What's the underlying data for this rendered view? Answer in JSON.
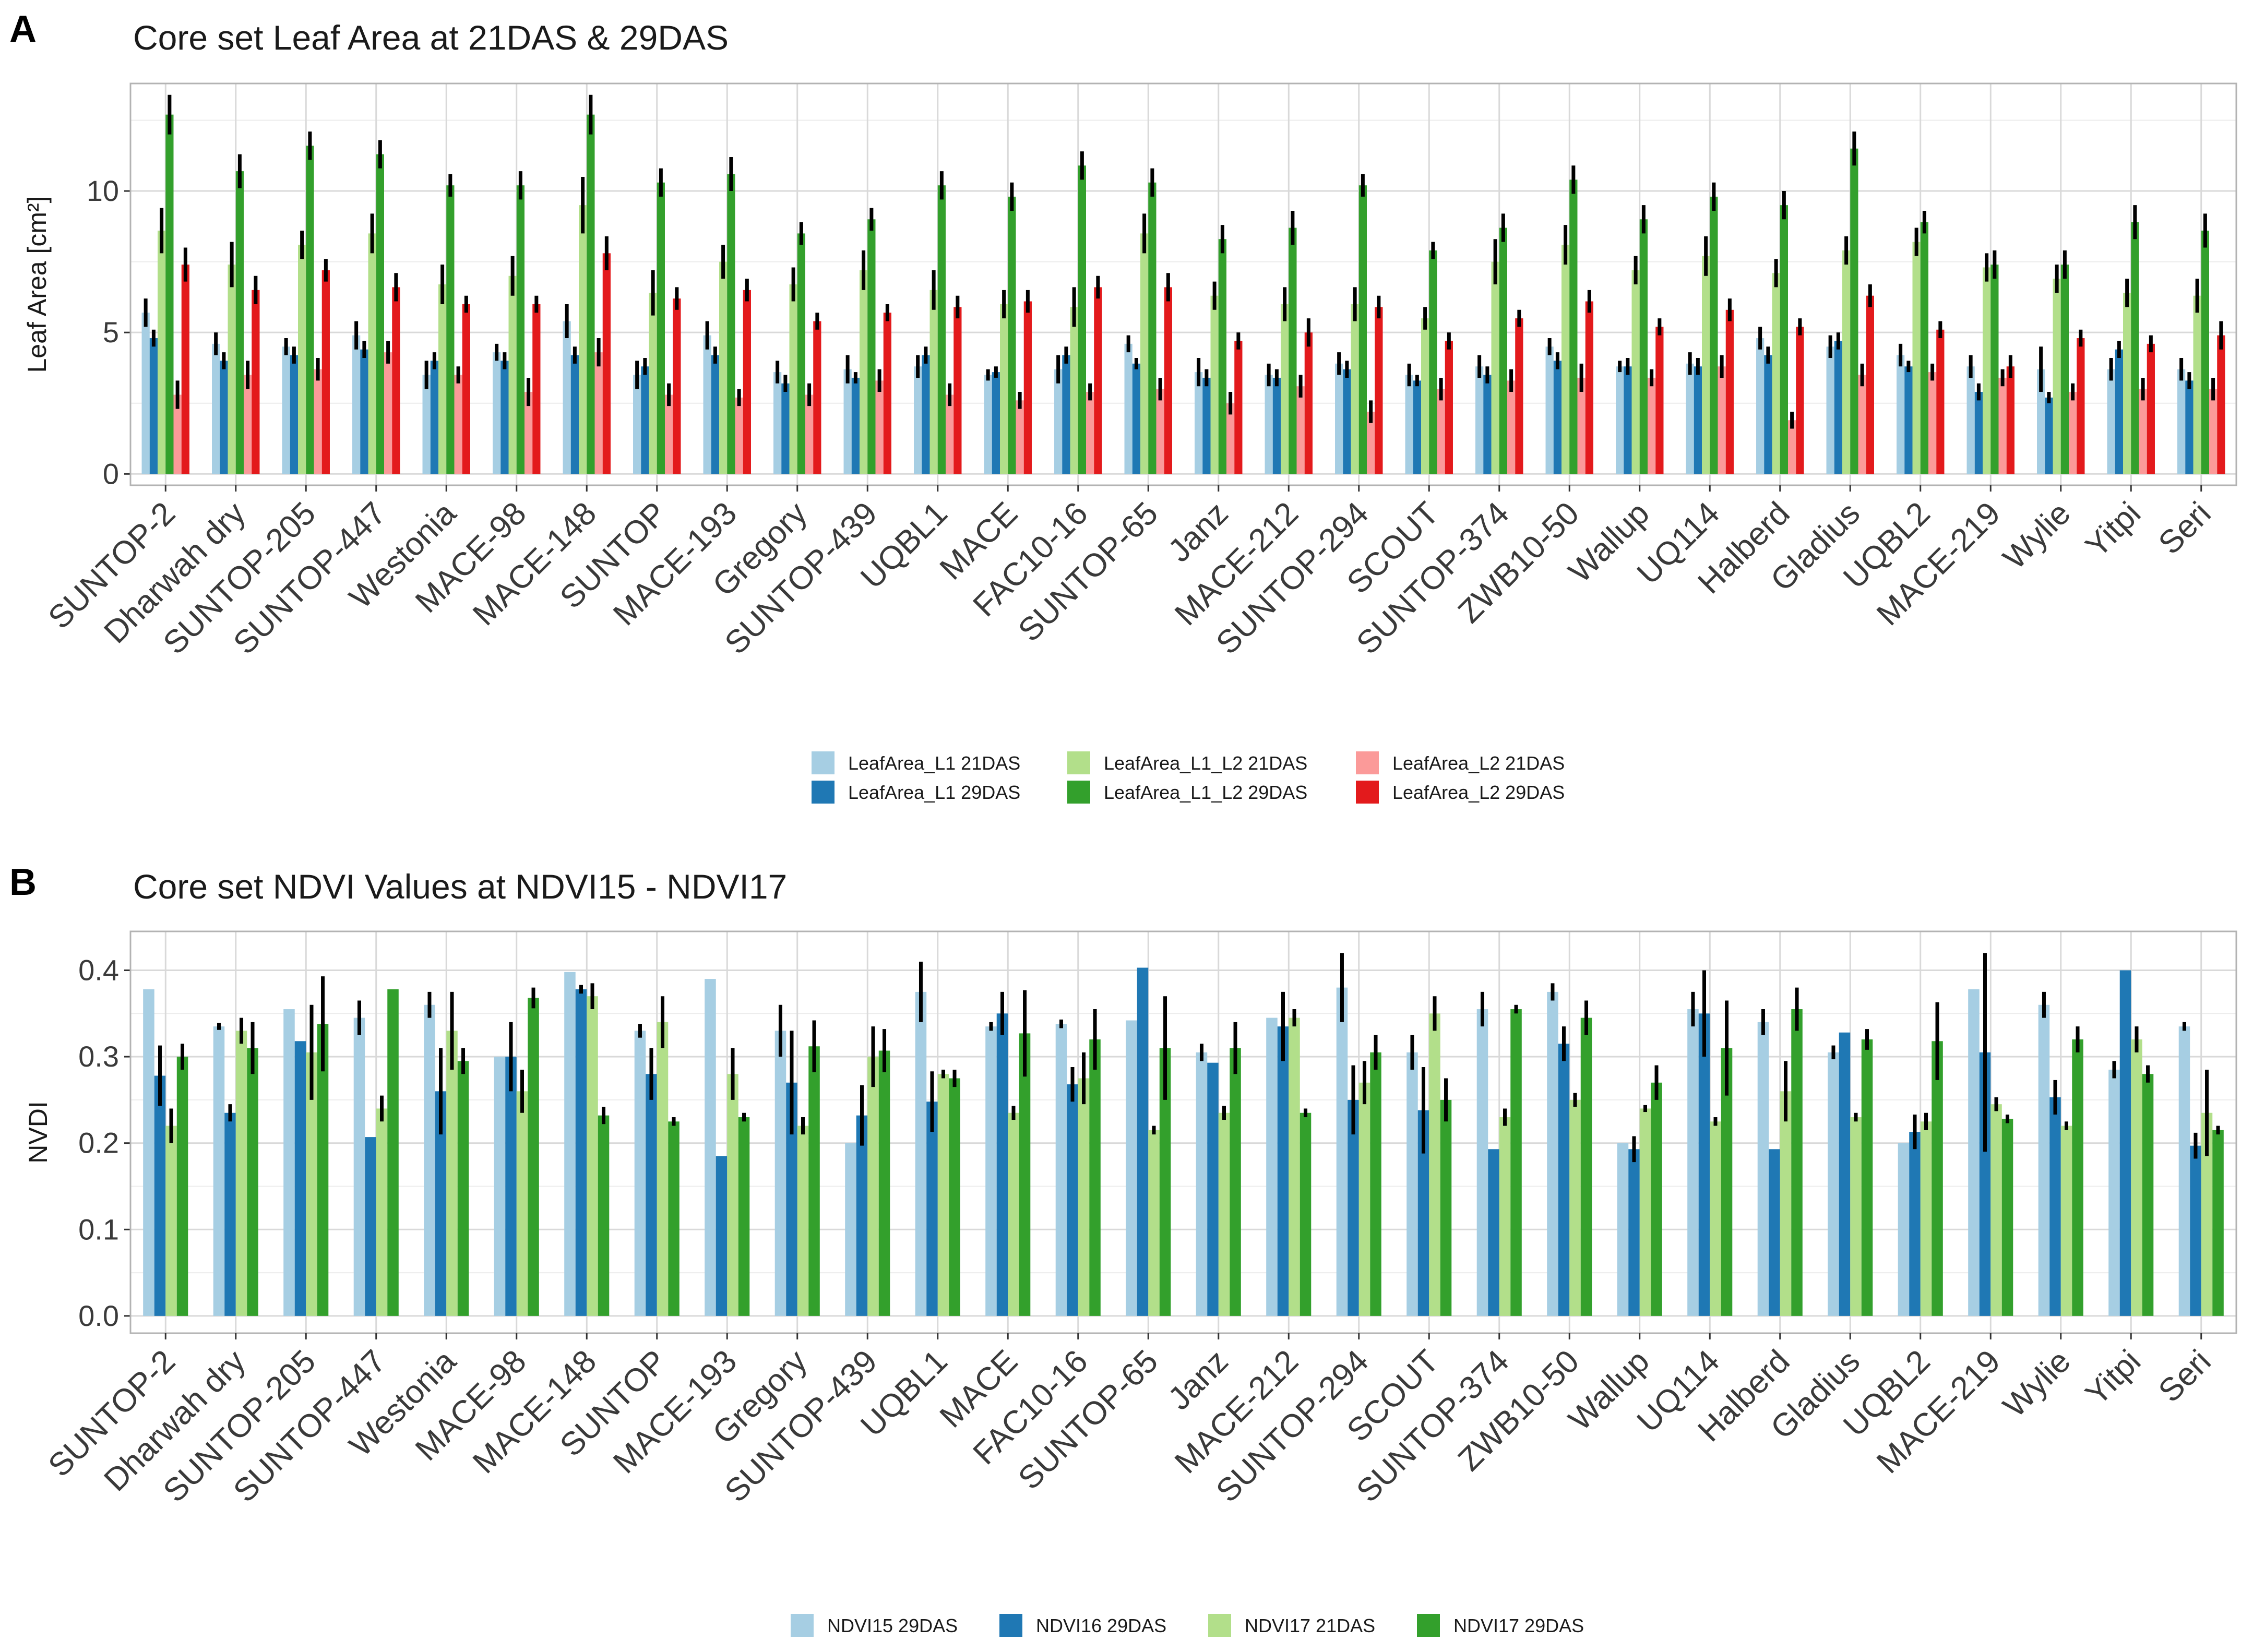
{
  "chart_data": [
    {
      "panel_letter": "A",
      "type": "bar",
      "title": "Core set Leaf Area at 21DAS & 29DAS",
      "ylabel": "Leaf Area [cm²]",
      "xlabel": "",
      "ylim": [
        -0.4,
        13.8
      ],
      "yticks": [
        0,
        5,
        10
      ],
      "grid": true,
      "legend_position": "bottom",
      "categories": [
        "SUNTOP-2",
        "Dharwah dry",
        "SUNTOP-205",
        "SUNTOP-447",
        "Westonia",
        "MACE-98",
        "MACE-148",
        "SUNTOP",
        "MACE-193",
        "Gregory",
        "SUNTOP-439",
        "UQBL1",
        "MACE",
        "FAC10-16",
        "SUNTOP-65",
        "Janz",
        "MACE-212",
        "SUNTOP-294",
        "SCOUT",
        "SUNTOP-374",
        "ZWB10-50",
        "Wallup",
        "UQ114",
        "Halberd",
        "Gladius",
        "UQBL2",
        "MACE-219",
        "Wylie",
        "Yitpi",
        "Seri"
      ],
      "series": [
        {
          "name": "LeafArea_L1 21DAS",
          "color": "#a6cee3",
          "values": [
            5.7,
            4.6,
            4.5,
            4.9,
            3.5,
            4.3,
            5.4,
            3.5,
            4.9,
            3.6,
            3.7,
            3.8,
            3.5,
            3.7,
            4.6,
            3.6,
            3.5,
            3.9,
            3.5,
            3.8,
            4.5,
            3.8,
            3.9,
            4.8,
            4.5,
            4.2,
            3.8,
            3.7,
            3.7,
            3.7
          ],
          "errors": [
            0.5,
            0.4,
            0.3,
            0.5,
            0.5,
            0.3,
            0.6,
            0.5,
            0.5,
            0.4,
            0.5,
            0.4,
            0.2,
            0.5,
            0.3,
            0.5,
            0.4,
            0.4,
            0.4,
            0.4,
            0.3,
            0.2,
            0.4,
            0.4,
            0.4,
            0.4,
            0.4,
            0.8,
            0.4,
            0.4
          ]
        },
        {
          "name": "LeafArea_L1 29DAS",
          "color": "#1f78b4",
          "values": [
            4.8,
            4.0,
            4.2,
            4.4,
            4.0,
            4.0,
            4.2,
            3.8,
            4.2,
            3.2,
            3.4,
            4.2,
            3.6,
            4.2,
            3.9,
            3.4,
            3.4,
            3.7,
            3.3,
            3.5,
            4.0,
            3.8,
            3.8,
            4.2,
            4.7,
            3.8,
            2.9,
            2.7,
            4.4,
            3.3
          ],
          "errors": [
            0.3,
            0.3,
            0.3,
            0.3,
            0.3,
            0.3,
            0.3,
            0.3,
            0.3,
            0.3,
            0.2,
            0.3,
            0.2,
            0.3,
            0.2,
            0.3,
            0.3,
            0.3,
            0.2,
            0.3,
            0.3,
            0.3,
            0.3,
            0.3,
            0.3,
            0.2,
            0.3,
            0.2,
            0.3,
            0.3
          ]
        },
        {
          "name": "LeafArea_L1_L2 21DAS",
          "color": "#b2df8a",
          "values": [
            8.6,
            7.4,
            8.1,
            8.5,
            6.7,
            7.0,
            9.5,
            6.4,
            7.5,
            6.7,
            7.2,
            6.5,
            6.0,
            5.9,
            8.5,
            6.3,
            6.0,
            6.0,
            5.5,
            7.5,
            8.1,
            7.2,
            7.7,
            7.1,
            7.9,
            8.2,
            7.3,
            6.9,
            6.4,
            6.3
          ],
          "errors": [
            0.8,
            0.8,
            0.5,
            0.7,
            0.7,
            0.7,
            1.0,
            0.8,
            0.6,
            0.6,
            0.7,
            0.7,
            0.5,
            0.7,
            0.7,
            0.5,
            0.6,
            0.6,
            0.4,
            0.8,
            0.7,
            0.5,
            0.7,
            0.5,
            0.5,
            0.5,
            0.5,
            0.5,
            0.5,
            0.6
          ]
        },
        {
          "name": "LeafArea_L1_L2 29DAS",
          "color": "#33a02c",
          "values": [
            12.7,
            10.7,
            11.6,
            11.3,
            10.2,
            10.2,
            12.7,
            10.3,
            10.6,
            8.5,
            9.0,
            10.2,
            9.8,
            10.9,
            10.3,
            8.3,
            8.7,
            10.2,
            7.9,
            8.7,
            10.4,
            9.0,
            9.8,
            9.5,
            11.5,
            8.9,
            7.4,
            7.4,
            8.9,
            8.6
          ],
          "errors": [
            0.7,
            0.6,
            0.5,
            0.5,
            0.4,
            0.5,
            0.7,
            0.5,
            0.6,
            0.4,
            0.4,
            0.5,
            0.5,
            0.5,
            0.5,
            0.5,
            0.6,
            0.4,
            0.3,
            0.5,
            0.5,
            0.5,
            0.5,
            0.5,
            0.6,
            0.4,
            0.5,
            0.5,
            0.6,
            0.6
          ]
        },
        {
          "name": "LeafArea_L2 21DAS",
          "color": "#fb9a99",
          "values": [
            2.8,
            3.5,
            3.7,
            4.3,
            3.5,
            2.9,
            4.3,
            2.8,
            2.7,
            2.8,
            3.3,
            2.8,
            2.6,
            2.9,
            3.0,
            2.5,
            3.1,
            2.2,
            3.0,
            3.3,
            3.4,
            3.4,
            3.8,
            1.9,
            3.5,
            3.6,
            3.4,
            2.9,
            3.0,
            3.0
          ],
          "errors": [
            0.5,
            0.5,
            0.4,
            0.4,
            0.3,
            0.5,
            0.5,
            0.4,
            0.3,
            0.4,
            0.4,
            0.4,
            0.3,
            0.3,
            0.4,
            0.4,
            0.4,
            0.4,
            0.4,
            0.4,
            0.5,
            0.3,
            0.4,
            0.3,
            0.4,
            0.3,
            0.3,
            0.3,
            0.4,
            0.4
          ]
        },
        {
          "name": "LeafArea_L2 29DAS",
          "color": "#e31a1c",
          "values": [
            7.4,
            6.5,
            7.2,
            6.6,
            6.0,
            6.0,
            7.8,
            6.2,
            6.5,
            5.4,
            5.7,
            5.9,
            6.1,
            6.6,
            6.6,
            4.7,
            5.0,
            5.9,
            4.7,
            5.5,
            6.1,
            5.2,
            5.8,
            5.2,
            6.3,
            5.1,
            3.8,
            4.8,
            4.6,
            4.9
          ],
          "errors": [
            0.6,
            0.5,
            0.4,
            0.5,
            0.3,
            0.3,
            0.6,
            0.4,
            0.4,
            0.3,
            0.3,
            0.4,
            0.4,
            0.4,
            0.5,
            0.3,
            0.5,
            0.4,
            0.3,
            0.3,
            0.4,
            0.3,
            0.4,
            0.3,
            0.4,
            0.3,
            0.4,
            0.3,
            0.3,
            0.5
          ]
        }
      ]
    },
    {
      "panel_letter": "B",
      "type": "bar",
      "title": "Core set NDVI Values at NDVI15 - NDVI17",
      "ylabel": "NVDI",
      "xlabel": "",
      "ylim": [
        -0.02,
        0.445
      ],
      "yticks": [
        "0.0",
        "0.1",
        "0.2",
        "0.3",
        "0.4"
      ],
      "grid": true,
      "legend_position": "bottom",
      "categories": [
        "SUNTOP-2",
        "Dharwah dry",
        "SUNTOP-205",
        "SUNTOP-447",
        "Westonia",
        "MACE-98",
        "MACE-148",
        "SUNTOP",
        "MACE-193",
        "Gregory",
        "SUNTOP-439",
        "UQBL1",
        "MACE",
        "FAC10-16",
        "SUNTOP-65",
        "Janz",
        "MACE-212",
        "SUNTOP-294",
        "SCOUT",
        "SUNTOP-374",
        "ZWB10-50",
        "Wallup",
        "UQ114",
        "Halberd",
        "Gladius",
        "UQBL2",
        "MACE-219",
        "Wylie",
        "Yitpi",
        "Seri"
      ],
      "series": [
        {
          "name": "NDVI15 29DAS",
          "color": "#a6cee3",
          "values": [
            0.378,
            0.335,
            0.355,
            0.345,
            0.36,
            0.3,
            0.398,
            0.33,
            0.39,
            0.33,
            0.2,
            0.375,
            0.335,
            0.338,
            0.342,
            0.305,
            0.345,
            0.38,
            0.305,
            0.355,
            0.375,
            0.2,
            0.355,
            0.34,
            0.305,
            0.2,
            0.378,
            0.36,
            0.285,
            0.335
          ],
          "errors": [
            0,
            0.004,
            0,
            0.02,
            0.015,
            0,
            0,
            0.008,
            0,
            0.03,
            0,
            0.035,
            0.005,
            0.005,
            0,
            0.01,
            0,
            0.04,
            0.02,
            0.02,
            0.01,
            0,
            0.02,
            0.015,
            0.008,
            0,
            0,
            0.015,
            0.01,
            0.005
          ]
        },
        {
          "name": "NDVI16 29DAS",
          "color": "#1f78b4",
          "values": [
            0.278,
            0.235,
            0.318,
            0.207,
            0.26,
            0.3,
            0.378,
            0.28,
            0.185,
            0.27,
            0.232,
            0.248,
            0.35,
            0.268,
            0.403,
            0.293,
            0.335,
            0.25,
            0.238,
            0.193,
            0.315,
            0.193,
            0.35,
            0.193,
            0.328,
            0.213,
            0.305,
            0.253,
            0.4,
            0.197
          ],
          "errors": [
            0.035,
            0.01,
            0,
            0,
            0.05,
            0.04,
            0.005,
            0.03,
            0,
            0.06,
            0.035,
            0.035,
            0.025,
            0.02,
            0,
            0,
            0.04,
            0.04,
            0.05,
            0,
            0.02,
            0.015,
            0.05,
            0,
            0,
            0.02,
            0.115,
            0.02,
            0,
            0.015
          ]
        },
        {
          "name": "NDVI17 21DAS",
          "color": "#b2df8a",
          "values": [
            0.22,
            0.33,
            0.305,
            0.24,
            0.33,
            0.26,
            0.37,
            0.34,
            0.28,
            0.22,
            0.3,
            0.28,
            0.235,
            0.275,
            0.215,
            0.235,
            0.345,
            0.27,
            0.35,
            0.23,
            0.25,
            0.24,
            0.225,
            0.26,
            0.23,
            0.225,
            0.245,
            0.22,
            0.32,
            0.235
          ],
          "errors": [
            0.02,
            0.015,
            0.055,
            0.015,
            0.045,
            0.025,
            0.015,
            0.03,
            0.03,
            0.01,
            0.035,
            0.005,
            0.008,
            0.03,
            0.005,
            0.008,
            0.01,
            0.025,
            0.02,
            0.01,
            0.008,
            0.004,
            0.005,
            0.035,
            0.005,
            0.01,
            0.008,
            0.005,
            0.015,
            0.05
          ]
        },
        {
          "name": "NDVI17 29DAS",
          "color": "#33a02c",
          "values": [
            0.3,
            0.31,
            0.338,
            0.378,
            0.295,
            0.368,
            0.232,
            0.225,
            0.23,
            0.312,
            0.307,
            0.275,
            0.327,
            0.32,
            0.31,
            0.31,
            0.235,
            0.305,
            0.25,
            0.355,
            0.345,
            0.27,
            0.31,
            0.355,
            0.32,
            0.318,
            0.228,
            0.32,
            0.28,
            0.215
          ],
          "errors": [
            0.015,
            0.03,
            0.055,
            0,
            0.015,
            0.012,
            0.01,
            0.005,
            0.005,
            0.03,
            0.025,
            0.01,
            0.05,
            0.035,
            0.06,
            0.03,
            0.005,
            0.02,
            0.025,
            0.005,
            0.02,
            0.02,
            0.055,
            0.025,
            0.012,
            0.045,
            0.005,
            0.015,
            0.01,
            0.005
          ]
        }
      ]
    }
  ]
}
